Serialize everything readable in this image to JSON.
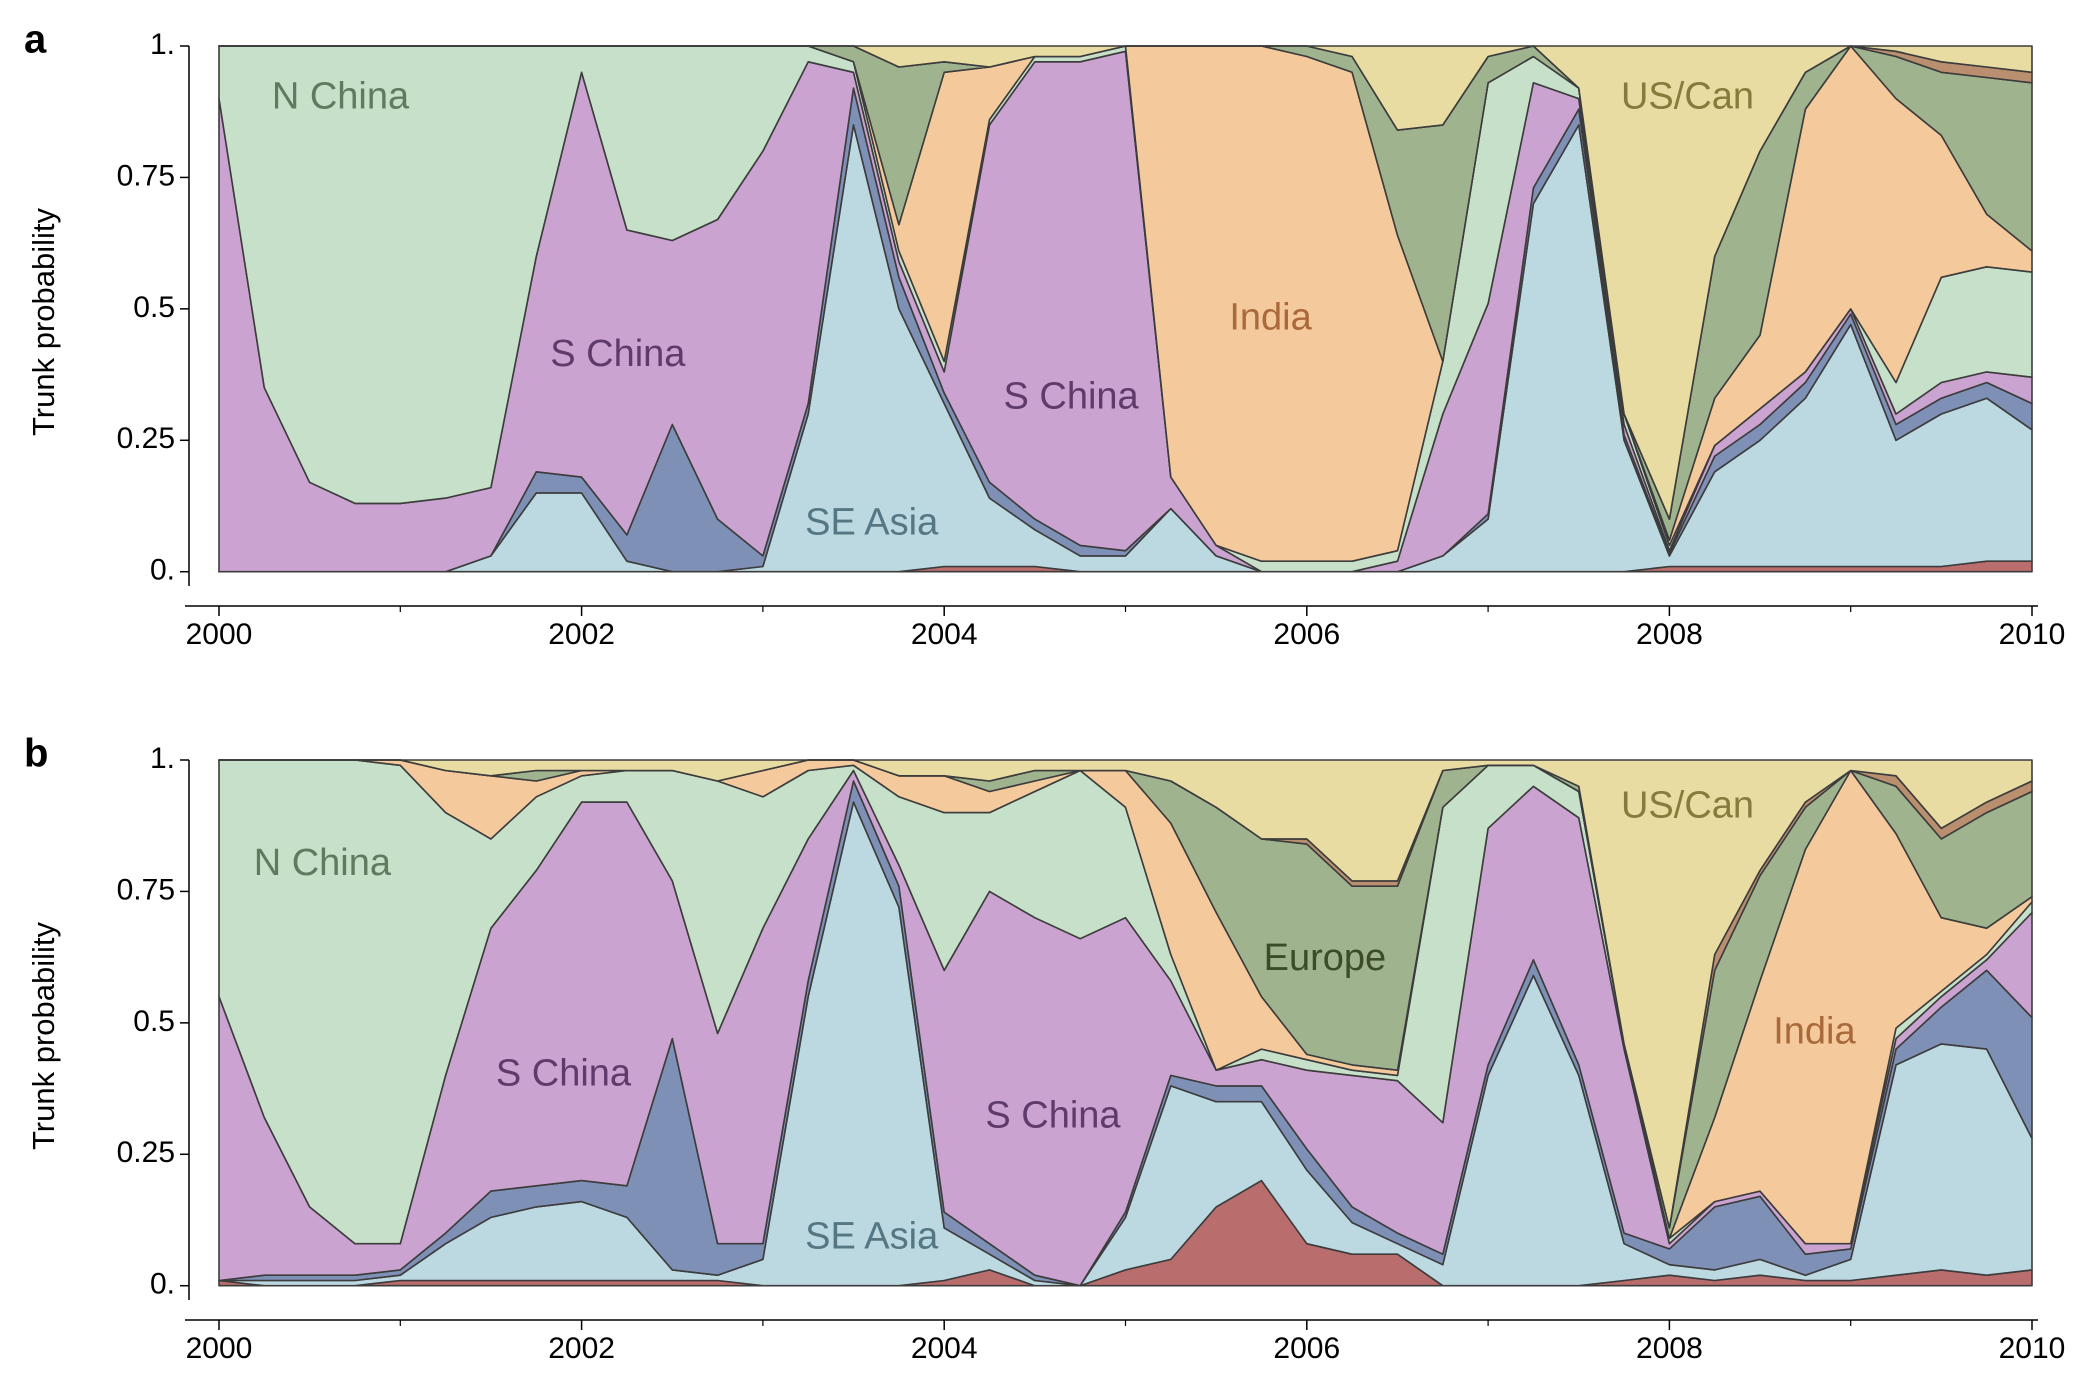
{
  "chart_data": [
    {
      "type": "stacked-area",
      "panel_label": "a",
      "ylabel": "Trunk probability",
      "x": [
        2000,
        2000.25,
        2000.5,
        2000.75,
        2001,
        2001.25,
        2001.5,
        2001.75,
        2002,
        2002.25,
        2002.5,
        2002.75,
        2003,
        2003.25,
        2003.5,
        2003.75,
        2004,
        2004.25,
        2004.5,
        2004.75,
        2005,
        2005.25,
        2005.5,
        2005.75,
        2006,
        2006.25,
        2006.5,
        2006.75,
        2007,
        2007.25,
        2007.5,
        2007.75,
        2008,
        2008.25,
        2008.5,
        2008.75,
        2009,
        2009.25,
        2009.5,
        2009.75,
        2010
      ],
      "xlim": [
        2000,
        2010
      ],
      "xticks": [
        2000,
        2002,
        2004,
        2006,
        2008,
        2010
      ],
      "xminorticks": [
        2001,
        2003,
        2005,
        2007,
        2009
      ],
      "ylim": [
        -0.05,
        1
      ],
      "yticks": [
        {
          "value": 0,
          "label": "0."
        },
        0.25,
        0.5,
        0.75,
        {
          "value": 1,
          "label": "1."
        }
      ],
      "series": [
        {
          "color": "#b96d6d",
          "values": [
            0,
            0,
            0,
            0,
            0,
            0,
            0,
            0,
            0,
            0,
            0,
            0,
            0,
            0,
            0,
            0,
            0.01,
            0.01,
            0.01,
            0,
            0,
            0,
            0,
            0,
            0,
            0,
            0,
            0,
            0,
            0,
            0,
            0,
            0.01,
            0.01,
            0.01,
            0.01,
            0.01,
            0.01,
            0.01,
            0.02,
            0.02
          ]
        },
        {
          "color": "#bcd9e2",
          "values": [
            0,
            0,
            0,
            0,
            0,
            0,
            0.03,
            0.15,
            0.15,
            0.02,
            0,
            0,
            0.01,
            0.3,
            0.85,
            0.5,
            0.31,
            0.13,
            0.07,
            0.03,
            0.03,
            0.12,
            0.03,
            0,
            0,
            0,
            0,
            0.03,
            0.1,
            0.7,
            0.85,
            0.25,
            0.02,
            0.18,
            0.24,
            0.32,
            0.46,
            0.24,
            0.29,
            0.31,
            0.25
          ]
        },
        {
          "color": "#7f90b6",
          "values": [
            0,
            0,
            0,
            0,
            0,
            0,
            0,
            0.04,
            0.03,
            0.05,
            0.28,
            0.1,
            0.02,
            0.02,
            0.07,
            0.06,
            0.02,
            0.03,
            0.02,
            0.02,
            0.01,
            0,
            0,
            0,
            0,
            0,
            0,
            0,
            0.01,
            0.03,
            0.03,
            0.01,
            0.005,
            0.03,
            0.03,
            0.03,
            0.02,
            0.03,
            0.03,
            0.03,
            0.05
          ]
        },
        {
          "color": "#caa3d0",
          "values": [
            0.9,
            0.35,
            0.17,
            0.13,
            0.13,
            0.14,
            0.13,
            0.41,
            0.77,
            0.58,
            0.35,
            0.57,
            0.77,
            0.65,
            0.03,
            0.03,
            0.04,
            0.68,
            0.87,
            0.92,
            0.95,
            0.06,
            0.02,
            0,
            0,
            0,
            0.02,
            0.27,
            0.4,
            0.2,
            0.02,
            0.02,
            0.005,
            0.02,
            0.03,
            0.02,
            0.01,
            0.02,
            0.03,
            0.02,
            0.05
          ]
        },
        {
          "color": "#c7e0c9",
          "values": [
            0.1,
            0.65,
            0.83,
            0.87,
            0.87,
            0.86,
            0.84,
            0.4,
            0.05,
            0.35,
            0.37,
            0.33,
            0.2,
            0.03,
            0.02,
            0.02,
            0.02,
            0.01,
            0.01,
            0.01,
            0.01,
            0,
            0,
            0.02,
            0.02,
            0.02,
            0.02,
            0.1,
            0.42,
            0.05,
            0.02,
            0.02,
            0.01,
            0,
            0,
            0,
            0,
            0.06,
            0.2,
            0.2,
            0.2
          ]
        },
        {
          "color": "#f4ca9d",
          "values": [
            0,
            0,
            0,
            0,
            0,
            0,
            0,
            0,
            0,
            0,
            0,
            0,
            0,
            0,
            0,
            0.05,
            0.55,
            0.1,
            0,
            0,
            0,
            0.82,
            0.95,
            0.98,
            0.96,
            0.93,
            0.6,
            0,
            0,
            0,
            0,
            0,
            0.01,
            0.09,
            0.14,
            0.5,
            0.5,
            0.54,
            0.27,
            0.1,
            0.04
          ]
        },
        {
          "color": "#9fb48e",
          "values": [
            0,
            0,
            0,
            0,
            0,
            0,
            0,
            0,
            0,
            0,
            0,
            0,
            0,
            0,
            0.03,
            0.3,
            0.02,
            0,
            0,
            0,
            0,
            0,
            0,
            0,
            0.02,
            0.03,
            0.2,
            0.45,
            0.05,
            0.02,
            0,
            0,
            0.04,
            0.27,
            0.35,
            0.07,
            0,
            0.08,
            0.12,
            0.26,
            0.32
          ]
        },
        {
          "color": "#b98f6f",
          "values": [
            0,
            0,
            0,
            0,
            0,
            0,
            0,
            0,
            0,
            0,
            0,
            0,
            0,
            0,
            0,
            0,
            0,
            0,
            0,
            0,
            0,
            0,
            0,
            0,
            0,
            0,
            0,
            0,
            0,
            0,
            0,
            0,
            0,
            0,
            0,
            0,
            0,
            0.01,
            0.02,
            0.02,
            0.02
          ]
        },
        {
          "color": "#e8dca3",
          "values": [
            0,
            0,
            0,
            0,
            0,
            0,
            0,
            0,
            0,
            0,
            0,
            0,
            0,
            0,
            0,
            0.04,
            0.03,
            0.04,
            0.02,
            0.02,
            0,
            0,
            0,
            0,
            0,
            0.02,
            0.16,
            0.15,
            0.02,
            0,
            0.08,
            0.7,
            0.9,
            0.4,
            0.2,
            0.05,
            0,
            0.01,
            0.03,
            0.04,
            0.05
          ]
        }
      ],
      "annotations": [
        {
          "text": "N China",
          "x": 2000.67,
          "y": 0.9,
          "color": "#5e7b60"
        },
        {
          "text": "S China",
          "x": 2002.2,
          "y": 0.41,
          "color": "#5f3b6b"
        },
        {
          "text": "SE Asia",
          "x": 2003.6,
          "y": 0.09,
          "color": "#557683"
        },
        {
          "text": "S China",
          "x": 2004.7,
          "y": 0.33,
          "color": "#5f3b6b"
        },
        {
          "text": "India",
          "x": 2005.8,
          "y": 0.48,
          "color": "#a9693b"
        },
        {
          "text": "US/Can",
          "x": 2008.1,
          "y": 0.9,
          "color": "#877b3b"
        }
      ]
    },
    {
      "type": "stacked-area",
      "panel_label": "b",
      "ylabel": "Trunk probability",
      "x": [
        2000,
        2000.25,
        2000.5,
        2000.75,
        2001,
        2001.25,
        2001.5,
        2001.75,
        2002,
        2002.25,
        2002.5,
        2002.75,
        2003,
        2003.25,
        2003.5,
        2003.75,
        2004,
        2004.25,
        2004.5,
        2004.75,
        2005,
        2005.25,
        2005.5,
        2005.75,
        2006,
        2006.25,
        2006.5,
        2006.75,
        2007,
        2007.25,
        2007.5,
        2007.75,
        2008,
        2008.25,
        2008.5,
        2008.75,
        2009,
        2009.25,
        2009.5,
        2009.75,
        2010
      ],
      "xlim": [
        2000,
        2010
      ],
      "xticks": [
        2000,
        2002,
        2004,
        2006,
        2008,
        2010
      ],
      "xminorticks": [
        2001,
        2003,
        2005,
        2007,
        2009
      ],
      "ylim": [
        -0.05,
        1
      ],
      "yticks": [
        {
          "value": 0,
          "label": "0."
        },
        0.25,
        0.5,
        0.75,
        {
          "value": 1,
          "label": "1."
        }
      ],
      "series": [
        {
          "color": "#b96d6d",
          "values": [
            0.01,
            0,
            0,
            0,
            0.01,
            0.01,
            0.01,
            0.01,
            0.01,
            0.01,
            0.01,
            0.01,
            0,
            0,
            0,
            0,
            0.01,
            0.03,
            0,
            0,
            0.03,
            0.05,
            0.15,
            0.2,
            0.08,
            0.06,
            0.06,
            0,
            0,
            0,
            0,
            0.01,
            0.02,
            0.01,
            0.02,
            0.01,
            0.01,
            0.02,
            0.03,
            0.02,
            0.03
          ]
        },
        {
          "color": "#bcd9e2",
          "values": [
            0,
            0.01,
            0.01,
            0.01,
            0.01,
            0.07,
            0.12,
            0.14,
            0.15,
            0.12,
            0.02,
            0.01,
            0.05,
            0.55,
            0.92,
            0.72,
            0.1,
            0.03,
            0.01,
            0,
            0.1,
            0.33,
            0.2,
            0.15,
            0.14,
            0.06,
            0.02,
            0.04,
            0.4,
            0.59,
            0.4,
            0.07,
            0.02,
            0.02,
            0.03,
            0.01,
            0.04,
            0.4,
            0.43,
            0.43,
            0.25
          ]
        },
        {
          "color": "#7f90b6",
          "values": [
            0,
            0.01,
            0.01,
            0.01,
            0.01,
            0.02,
            0.05,
            0.04,
            0.04,
            0.06,
            0.44,
            0.06,
            0.03,
            0.03,
            0.04,
            0.04,
            0.03,
            0.02,
            0.01,
            0,
            0.01,
            0.02,
            0.03,
            0.03,
            0.04,
            0.03,
            0.02,
            0.02,
            0.02,
            0.03,
            0.02,
            0.02,
            0.03,
            0.12,
            0.12,
            0.04,
            0.02,
            0.03,
            0.07,
            0.15,
            0.23
          ]
        },
        {
          "color": "#caa3d0",
          "values": [
            0.54,
            0.3,
            0.13,
            0.06,
            0.05,
            0.3,
            0.5,
            0.6,
            0.72,
            0.73,
            0.3,
            0.4,
            0.6,
            0.27,
            0.02,
            0.04,
            0.46,
            0.67,
            0.68,
            0.66,
            0.56,
            0.18,
            0.03,
            0.05,
            0.15,
            0.25,
            0.29,
            0.25,
            0.45,
            0.33,
            0.47,
            0.35,
            0.01,
            0.01,
            0.01,
            0.02,
            0.01,
            0.02,
            0.02,
            0.02,
            0.2
          ]
        },
        {
          "color": "#c7e0c9",
          "values": [
            0.45,
            0.68,
            0.85,
            0.92,
            0.91,
            0.5,
            0.17,
            0.14,
            0.05,
            0.06,
            0.21,
            0.48,
            0.25,
            0.13,
            0.01,
            0.13,
            0.3,
            0.15,
            0.24,
            0.32,
            0.21,
            0.05,
            0,
            0.02,
            0.02,
            0.01,
            0.01,
            0.6,
            0.12,
            0.04,
            0.05,
            0.01,
            0.01,
            0,
            0,
            0,
            0,
            0.02,
            0.01,
            0.01,
            0.02
          ]
        },
        {
          "color": "#f4ca9d",
          "values": [
            0,
            0,
            0,
            0,
            0.01,
            0.08,
            0.12,
            0.03,
            0.01,
            0,
            0,
            0,
            0.05,
            0.02,
            0.01,
            0.04,
            0.07,
            0.04,
            0.02,
            0,
            0.07,
            0.25,
            0.3,
            0.1,
            0.01,
            0.01,
            0.01,
            0,
            0,
            0,
            0,
            0,
            0,
            0.16,
            0.4,
            0.75,
            0.9,
            0.37,
            0.14,
            0.05,
            0.01
          ]
        },
        {
          "color": "#9fb48e",
          "values": [
            0,
            0,
            0,
            0,
            0,
            0,
            0,
            0.02,
            0,
            0,
            0,
            0,
            0,
            0,
            0,
            0,
            0,
            0.02,
            0.02,
            0,
            0,
            0.08,
            0.2,
            0.3,
            0.4,
            0.34,
            0.35,
            0.07,
            0,
            0,
            0.01,
            0,
            0.02,
            0.28,
            0.2,
            0.08,
            0,
            0.09,
            0.15,
            0.22,
            0.2
          ]
        },
        {
          "color": "#b98f6f",
          "values": [
            0,
            0,
            0,
            0,
            0,
            0,
            0,
            0,
            0,
            0,
            0,
            0,
            0,
            0,
            0,
            0,
            0,
            0,
            0,
            0,
            0,
            0,
            0,
            0,
            0.01,
            0.01,
            0.01,
            0,
            0,
            0,
            0,
            0,
            0,
            0.03,
            0.01,
            0.01,
            0,
            0.02,
            0.02,
            0.02,
            0.02
          ]
        },
        {
          "color": "#e8dca3",
          "values": [
            0,
            0,
            0,
            0,
            0,
            0.02,
            0.03,
            0.02,
            0.02,
            0.02,
            0.02,
            0.04,
            0.02,
            0,
            0,
            0.03,
            0.03,
            0.04,
            0.02,
            0.02,
            0.02,
            0.04,
            0.09,
            0.15,
            0.15,
            0.23,
            0.23,
            0.02,
            0.01,
            0.01,
            0.05,
            0.54,
            0.89,
            0.37,
            0.21,
            0.08,
            0.02,
            0.03,
            0.13,
            0.08,
            0.04
          ]
        }
      ],
      "annotations": [
        {
          "text": "N China",
          "x": 2000.57,
          "y": 0.8,
          "color": "#5e7b60"
        },
        {
          "text": "S China",
          "x": 2001.9,
          "y": 0.4,
          "color": "#5f3b6b"
        },
        {
          "text": "SE Asia",
          "x": 2003.6,
          "y": 0.09,
          "color": "#557683"
        },
        {
          "text": "S China",
          "x": 2004.6,
          "y": 0.32,
          "color": "#5f3b6b"
        },
        {
          "text": "Europe",
          "x": 2006.1,
          "y": 0.62,
          "color": "#3b4b2b"
        },
        {
          "text": "India",
          "x": 2008.8,
          "y": 0.48,
          "color": "#a9693b"
        },
        {
          "text": "US/Can",
          "x": 2008.1,
          "y": 0.91,
          "color": "#877b3b"
        }
      ]
    }
  ]
}
